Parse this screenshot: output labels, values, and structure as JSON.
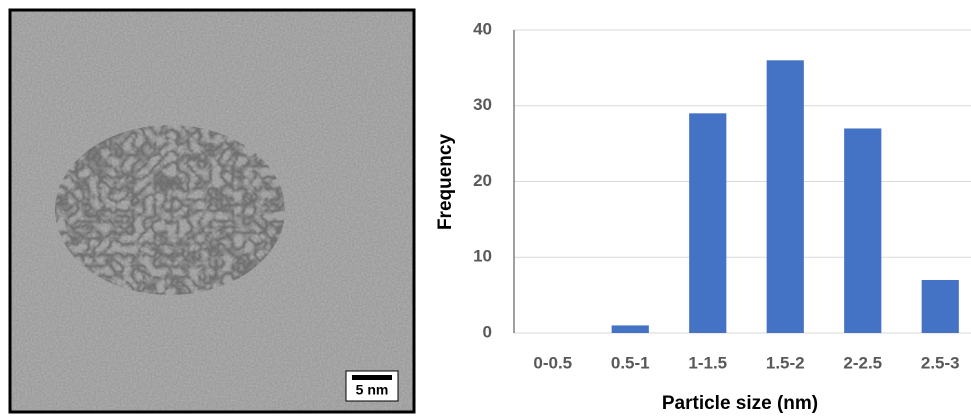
{
  "image": {
    "scale_bar_label": "5 nm"
  },
  "chart_data": {
    "type": "bar",
    "xlabel": "Particle size (nm)",
    "ylabel": "Frequency",
    "categories": [
      "0-0.5",
      "0.5-1",
      "1-1.5",
      "1.5-2",
      "2-2.5",
      "2.5-3"
    ],
    "values": [
      0,
      1,
      29,
      36,
      27,
      7
    ],
    "color": "#4472c4",
    "ylim": [
      0,
      40
    ],
    "yticks": [
      0,
      10,
      20,
      30,
      40
    ],
    "grid": true
  }
}
